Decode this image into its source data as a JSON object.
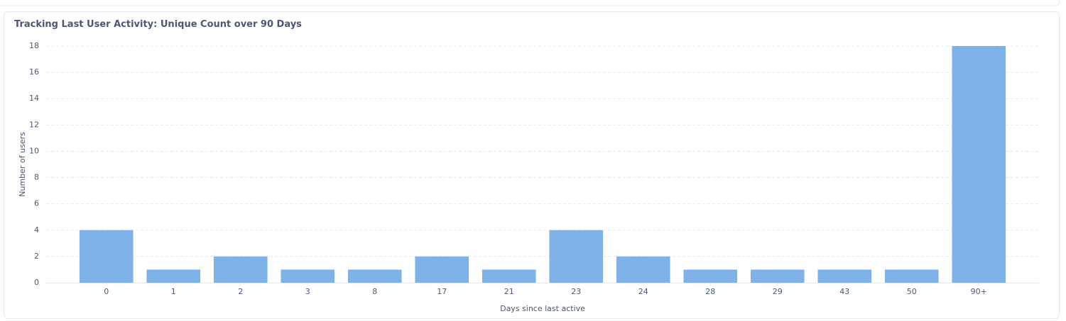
{
  "chart_data": {
    "type": "bar",
    "title": "Tracking Last User Activity: Unique Count over 90 Days",
    "x_label": "Days since last active",
    "y_label": "Number of users",
    "categories": [
      "0",
      "1",
      "2",
      "3",
      "8",
      "17",
      "21",
      "23",
      "24",
      "28",
      "29",
      "43",
      "50",
      "90+"
    ],
    "values": [
      4,
      1,
      2,
      1,
      1,
      2,
      1,
      4,
      2,
      1,
      1,
      1,
      1,
      18
    ],
    "color": "#7eb2e8",
    "ylim": [
      0,
      18
    ],
    "yticks": [
      0,
      2,
      4,
      6,
      8,
      10,
      12,
      14,
      16,
      18
    ],
    "grid": true
  }
}
